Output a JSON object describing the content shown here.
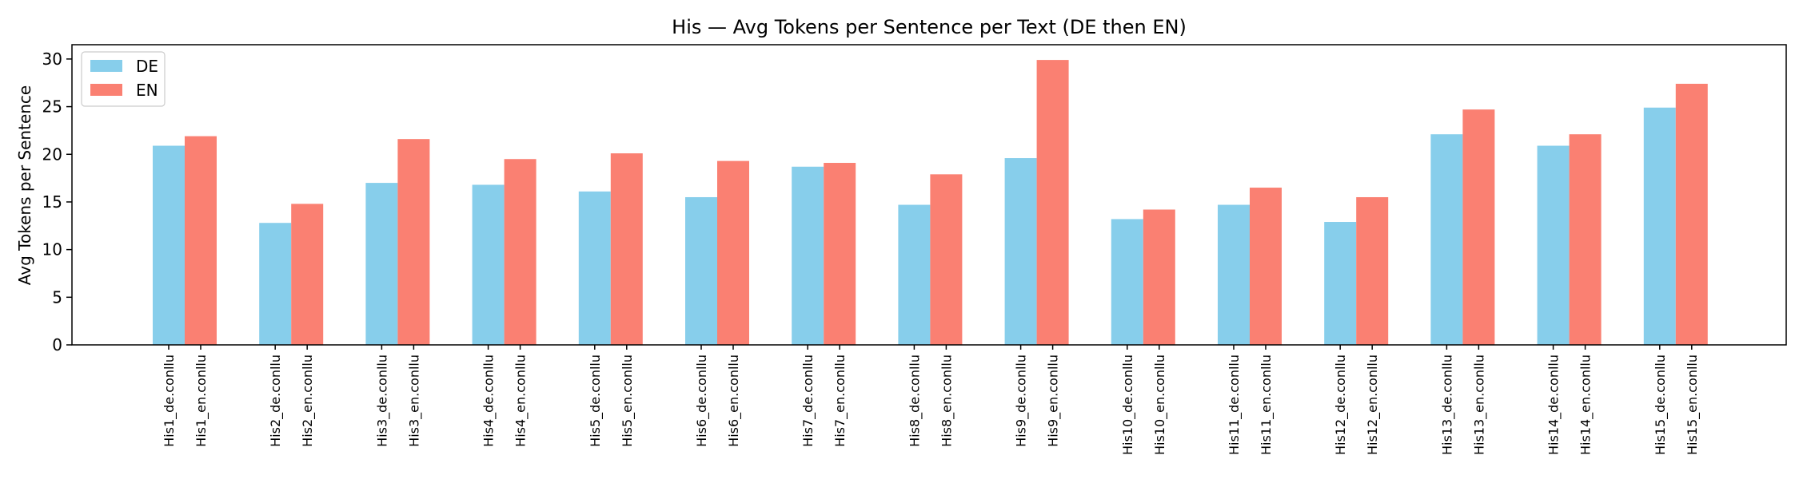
{
  "chart_data": {
    "type": "bar",
    "title": "His — Avg Tokens per Sentence per Text (DE then EN)",
    "xlabel": "",
    "ylabel": "Avg Tokens per Sentence",
    "ylim": [
      0,
      31.5
    ],
    "yticks": [
      0,
      5,
      10,
      15,
      20,
      25,
      30
    ],
    "grid": false,
    "legend_position": "top-left",
    "groups": [
      "His1",
      "His2",
      "His3",
      "His4",
      "His5",
      "His6",
      "His7",
      "His8",
      "His9",
      "His10",
      "His11",
      "His12",
      "His13",
      "His14",
      "His15"
    ],
    "series": [
      {
        "name": "DE",
        "color": "#87CEEB",
        "tick_labels": [
          "His1_de.conllu",
          "His2_de.conllu",
          "His3_de.conllu",
          "His4_de.conllu",
          "His5_de.conllu",
          "His6_de.conllu",
          "His7_de.conllu",
          "His8_de.conllu",
          "His9_de.conllu",
          "His10_de.conllu",
          "His11_de.conllu",
          "His12_de.conllu",
          "His13_de.conllu",
          "His14_de.conllu",
          "His15_de.conllu"
        ],
        "values": [
          20.9,
          12.8,
          17.0,
          16.8,
          16.1,
          15.5,
          18.7,
          14.7,
          19.6,
          13.2,
          14.7,
          12.9,
          22.1,
          20.9,
          24.9
        ]
      },
      {
        "name": "EN",
        "color": "#FA8072",
        "tick_labels": [
          "His1_en.conllu",
          "His2_en.conllu",
          "His3_en.conllu",
          "His4_en.conllu",
          "His5_en.conllu",
          "His6_en.conllu",
          "His7_en.conllu",
          "His8_en.conllu",
          "His9_en.conllu",
          "His10_en.conllu",
          "His11_en.conllu",
          "His12_en.conllu",
          "His13_en.conllu",
          "His14_en.conllu",
          "His15_en.conllu"
        ],
        "values": [
          21.9,
          14.8,
          21.6,
          19.5,
          20.1,
          19.3,
          19.1,
          17.9,
          29.9,
          14.2,
          16.5,
          15.5,
          24.7,
          22.1,
          27.4
        ]
      }
    ]
  }
}
